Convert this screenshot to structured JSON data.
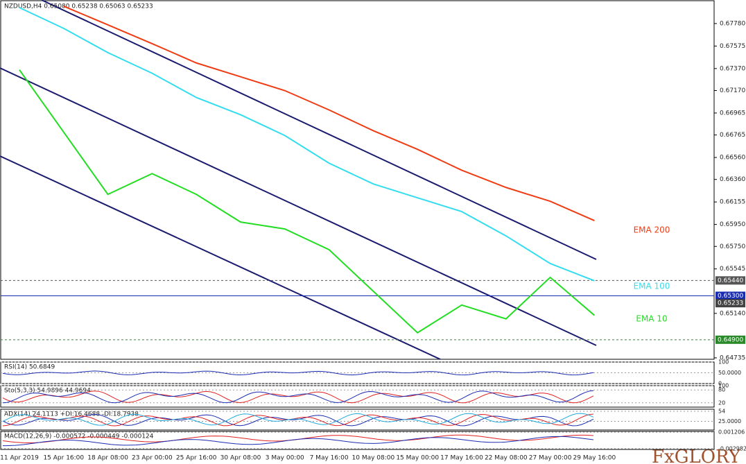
{
  "chart_data": {
    "type": "line",
    "title": "NZDUSD,H4  0.65080 0.65238 0.65063 0.65233",
    "x": [
      "11 Apr 2019",
      "15 Apr 16:00",
      "18 Apr 08:00",
      "23 Apr 00:00",
      "25 Apr 16:00",
      "30 Apr 08:00",
      "3 May 00:00",
      "7 May 16:00",
      "10 May 08:00",
      "15 May 00:00",
      "17 May 16:00",
      "22 May 08:00",
      "27 May 00:00",
      "29 May 16:00"
    ],
    "series": [
      {
        "name": "EMA 200",
        "color": "#f03c14",
        "values": [
          null,
          0.67938,
          0.67768,
          0.67597,
          0.67421,
          0.67295,
          0.67169,
          0.66993,
          0.66804,
          0.66634,
          0.66444,
          0.66287,
          0.66161,
          0.65985
        ]
      },
      {
        "name": "EMA 100",
        "color": "#33ddee",
        "values": [
          0.67925,
          0.67736,
          0.67515,
          0.67327,
          0.67106,
          0.66949,
          0.6676,
          0.66508,
          0.66319,
          0.66193,
          0.66067,
          0.65846,
          0.65594,
          0.65437
        ]
      },
      {
        "name": "EMA 10",
        "color": "#22dd22",
        "values": [
          0.67358,
          0.66791,
          0.66224,
          0.66413,
          0.66224,
          0.65972,
          0.65909,
          0.6572,
          0.65342,
          0.64964,
          0.65216,
          0.6509,
          0.65468,
          0.65122
        ]
      }
    ],
    "ylim": [
      0.64722,
      0.67988
    ],
    "yticks": [
      {
        "value": 0.6778,
        "label": "0.67780"
      },
      {
        "value": 0.67575,
        "label": "0.67575"
      },
      {
        "value": 0.6737,
        "label": "0.67370"
      },
      {
        "value": 0.6717,
        "label": "0.67170"
      },
      {
        "value": 0.66965,
        "label": "0.66965"
      },
      {
        "value": 0.66765,
        "label": "0.66765"
      },
      {
        "value": 0.6656,
        "label": "0.66560"
      },
      {
        "value": 0.6636,
        "label": "0.66360"
      },
      {
        "value": 0.66155,
        "label": "0.66155"
      },
      {
        "value": 0.6595,
        "label": "0.65950"
      },
      {
        "value": 0.6575,
        "label": "0.65750"
      },
      {
        "value": 0.65545,
        "label": "0.65545"
      },
      {
        "value": 0.6514,
        "label": "0.65140"
      },
      {
        "value": 0.64735,
        "label": "0.64735"
      }
    ],
    "price_levels": [
      {
        "value": 0.6544,
        "label": "0.65440",
        "color": "#555555"
      },
      {
        "value": 0.653,
        "label": "0.65300",
        "color": "#1a2cb0"
      },
      {
        "value": 0.65233,
        "label": "0.65233",
        "color": "#444444"
      },
      {
        "value": 0.649,
        "label": "0.64900",
        "color": "#2a8a2a"
      }
    ]
  },
  "indicators": [
    {
      "label": "RSI(14) 50.6849",
      "ylim": [
        0,
        100
      ],
      "ticks": [
        100,
        {
          "value": 50,
          "label": "50.0000"
        },
        0
      ]
    },
    {
      "label": "Sto(5,3,3) 54.9896 44.9694",
      "ylim": [
        0,
        100
      ],
      "ticks": [
        100,
        80,
        20
      ]
    },
    {
      "label": "ADX(14) 24.1113 +DI:16.4688 -DI:18.7938",
      "ylim": [
        0,
        60
      ],
      "ticks": [
        54,
        {
          "value": 25,
          "label": "25.0000"
        }
      ]
    },
    {
      "label": "MACD(12,26,9) -0.000572 -0.000449 -0.000124",
      "ylim": [
        -0.0032,
        0.0014
      ],
      "ticks": [
        0.001206,
        -0.002982
      ]
    }
  ],
  "brand": "FxGLORY"
}
